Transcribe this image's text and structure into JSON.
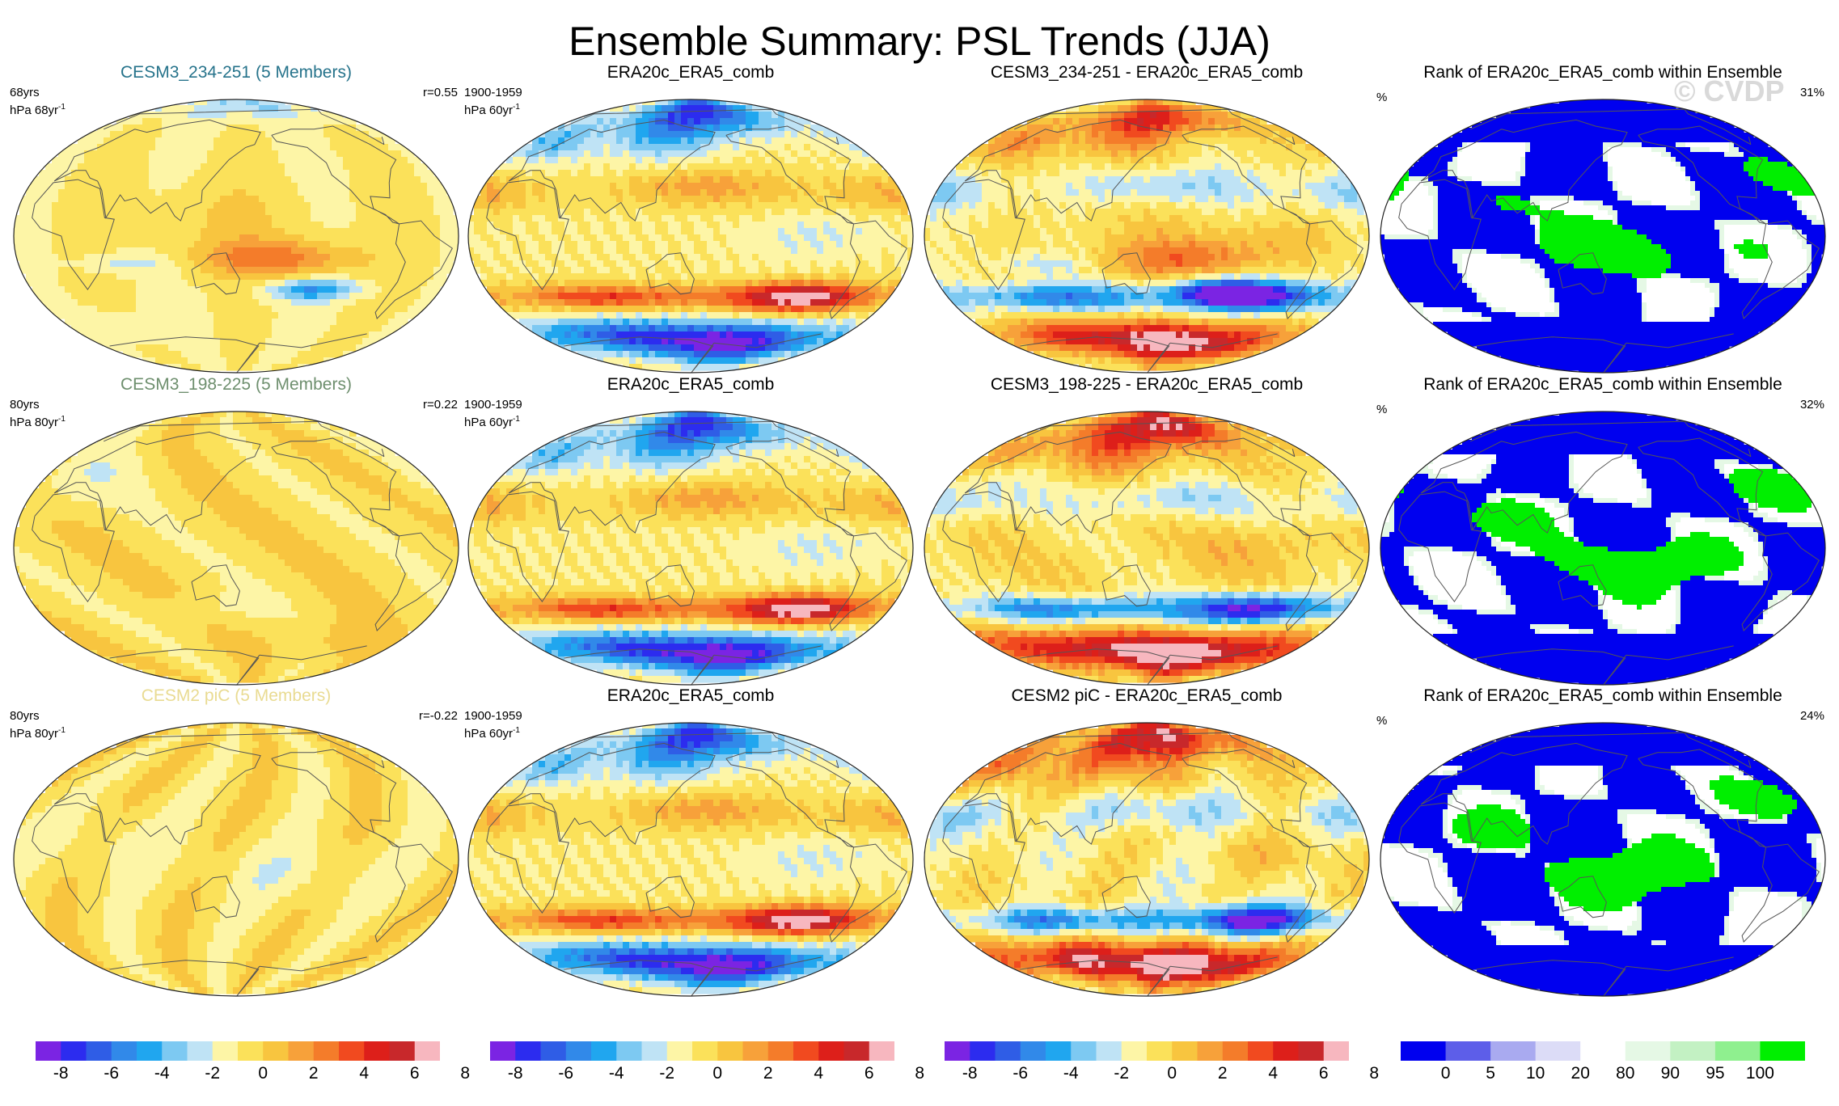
{
  "figure": {
    "title": "Ensemble Summary: PSL Trends (JJA)",
    "watermark": "© CVDP"
  },
  "colors": {
    "sequential_anomaly": [
      "#7b24e3",
      "#2c2cef",
      "#2f5de6",
      "#3189e9",
      "#20a6ef",
      "#7dc9f2",
      "#bfe3f5",
      "#fdf5a6",
      "#fbe15a",
      "#f8c53f",
      "#f7a13a",
      "#f47c2a",
      "#f14a1f",
      "#dd1f1a",
      "#c8282b",
      "#f7b7bf"
    ],
    "rank": [
      "#0000ef",
      "#5d5ee9",
      "#a9aaf0",
      "#dcdcf7",
      "#ffffff",
      "#e5f8e5",
      "#c3f1c3",
      "#8ff08f",
      "#00ef00"
    ],
    "land_outline": "#555555"
  },
  "chart_data": [
    {
      "type": "heatmap",
      "panel": "row1-model",
      "title": "CESM3_234-251 (5 Members)",
      "title_color": "#26738b",
      "left_label": [
        "68yrs",
        "hPa 68yr"
      ],
      "left_label_sup": "-1",
      "right_label": "r=0.55",
      "pattern": "model1",
      "colorbar": "anomaly"
    },
    {
      "type": "heatmap",
      "panel": "row1-obs",
      "title": "ERA20c_ERA5_comb",
      "title_color": "#000000",
      "left_label": [
        "1900-1959",
        "hPa 60yr"
      ],
      "left_label_sup": "-1",
      "right_label": "",
      "pattern": "obs",
      "colorbar": "anomaly"
    },
    {
      "type": "heatmap",
      "panel": "row1-diff",
      "title": "CESM3_234-251 - ERA20c_ERA5_comb",
      "title_color": "#000000",
      "left_label": [],
      "right_label": "",
      "pattern": "diff1",
      "colorbar": "anomaly"
    },
    {
      "type": "heatmap",
      "panel": "row1-rank",
      "title": "Rank of ERA20c_ERA5_comb within Ensemble",
      "title_color": "#000000",
      "left_label": [
        "%"
      ],
      "right_label": "31%",
      "pattern": "rank1",
      "colorbar": "rank"
    },
    {
      "type": "heatmap",
      "panel": "row2-model",
      "title": "CESM3_198-225 (5 Members)",
      "title_color": "#6e8f6e",
      "left_label": [
        "80yrs",
        "hPa 80yr"
      ],
      "left_label_sup": "-1",
      "right_label": "r=0.22",
      "pattern": "model2",
      "colorbar": "anomaly"
    },
    {
      "type": "heatmap",
      "panel": "row2-obs",
      "title": "ERA20c_ERA5_comb",
      "title_color": "#000000",
      "left_label": [
        "1900-1959",
        "hPa 60yr"
      ],
      "left_label_sup": "-1",
      "right_label": "",
      "pattern": "obs",
      "colorbar": "anomaly"
    },
    {
      "type": "heatmap",
      "panel": "row2-diff",
      "title": "CESM3_198-225 - ERA20c_ERA5_comb",
      "title_color": "#000000",
      "left_label": [],
      "right_label": "",
      "pattern": "diff2",
      "colorbar": "anomaly"
    },
    {
      "type": "heatmap",
      "panel": "row2-rank",
      "title": "Rank of ERA20c_ERA5_comb within Ensemble",
      "title_color": "#000000",
      "left_label": [
        "%"
      ],
      "right_label": "32%",
      "pattern": "rank2",
      "colorbar": "rank"
    },
    {
      "type": "heatmap",
      "panel": "row3-model",
      "title": "CESM2 piC (5 Members)",
      "title_color": "#e9db92",
      "left_label": [
        "80yrs",
        "hPa 80yr"
      ],
      "left_label_sup": "-1",
      "right_label": "r=-0.22",
      "pattern": "model3",
      "colorbar": "anomaly"
    },
    {
      "type": "heatmap",
      "panel": "row3-obs",
      "title": "ERA20c_ERA5_comb",
      "title_color": "#000000",
      "left_label": [
        "1900-1959",
        "hPa 60yr"
      ],
      "left_label_sup": "-1",
      "right_label": "",
      "pattern": "obs",
      "colorbar": "anomaly"
    },
    {
      "type": "heatmap",
      "panel": "row3-diff",
      "title": "CESM2 piC - ERA20c_ERA5_comb",
      "title_color": "#000000",
      "left_label": [],
      "right_label": "",
      "pattern": "diff3",
      "colorbar": "anomaly"
    },
    {
      "type": "heatmap",
      "panel": "row3-rank",
      "title": "Rank of ERA20c_ERA5_comb within Ensemble",
      "title_color": "#000000",
      "left_label": [
        "%"
      ],
      "right_label": "24%",
      "pattern": "rank3",
      "colorbar": "rank"
    }
  ],
  "colorbars": [
    {
      "name": "anomaly-colorbar-1",
      "kind": "anomaly",
      "ticks": [
        "-8",
        "-6",
        "-4",
        "-2",
        "0",
        "2",
        "4",
        "6",
        "8"
      ]
    },
    {
      "name": "anomaly-colorbar-2",
      "kind": "anomaly",
      "ticks": [
        "-8",
        "-6",
        "-4",
        "-2",
        "0",
        "2",
        "4",
        "6",
        "8"
      ]
    },
    {
      "name": "anomaly-colorbar-3",
      "kind": "anomaly",
      "ticks": [
        "-8",
        "-6",
        "-4",
        "-2",
        "0",
        "2",
        "4",
        "6",
        "8"
      ]
    },
    {
      "name": "rank-colorbar",
      "kind": "rank",
      "ticks": [
        "0",
        "5",
        "10",
        "20",
        "80",
        "90",
        "95",
        "100"
      ]
    }
  ]
}
